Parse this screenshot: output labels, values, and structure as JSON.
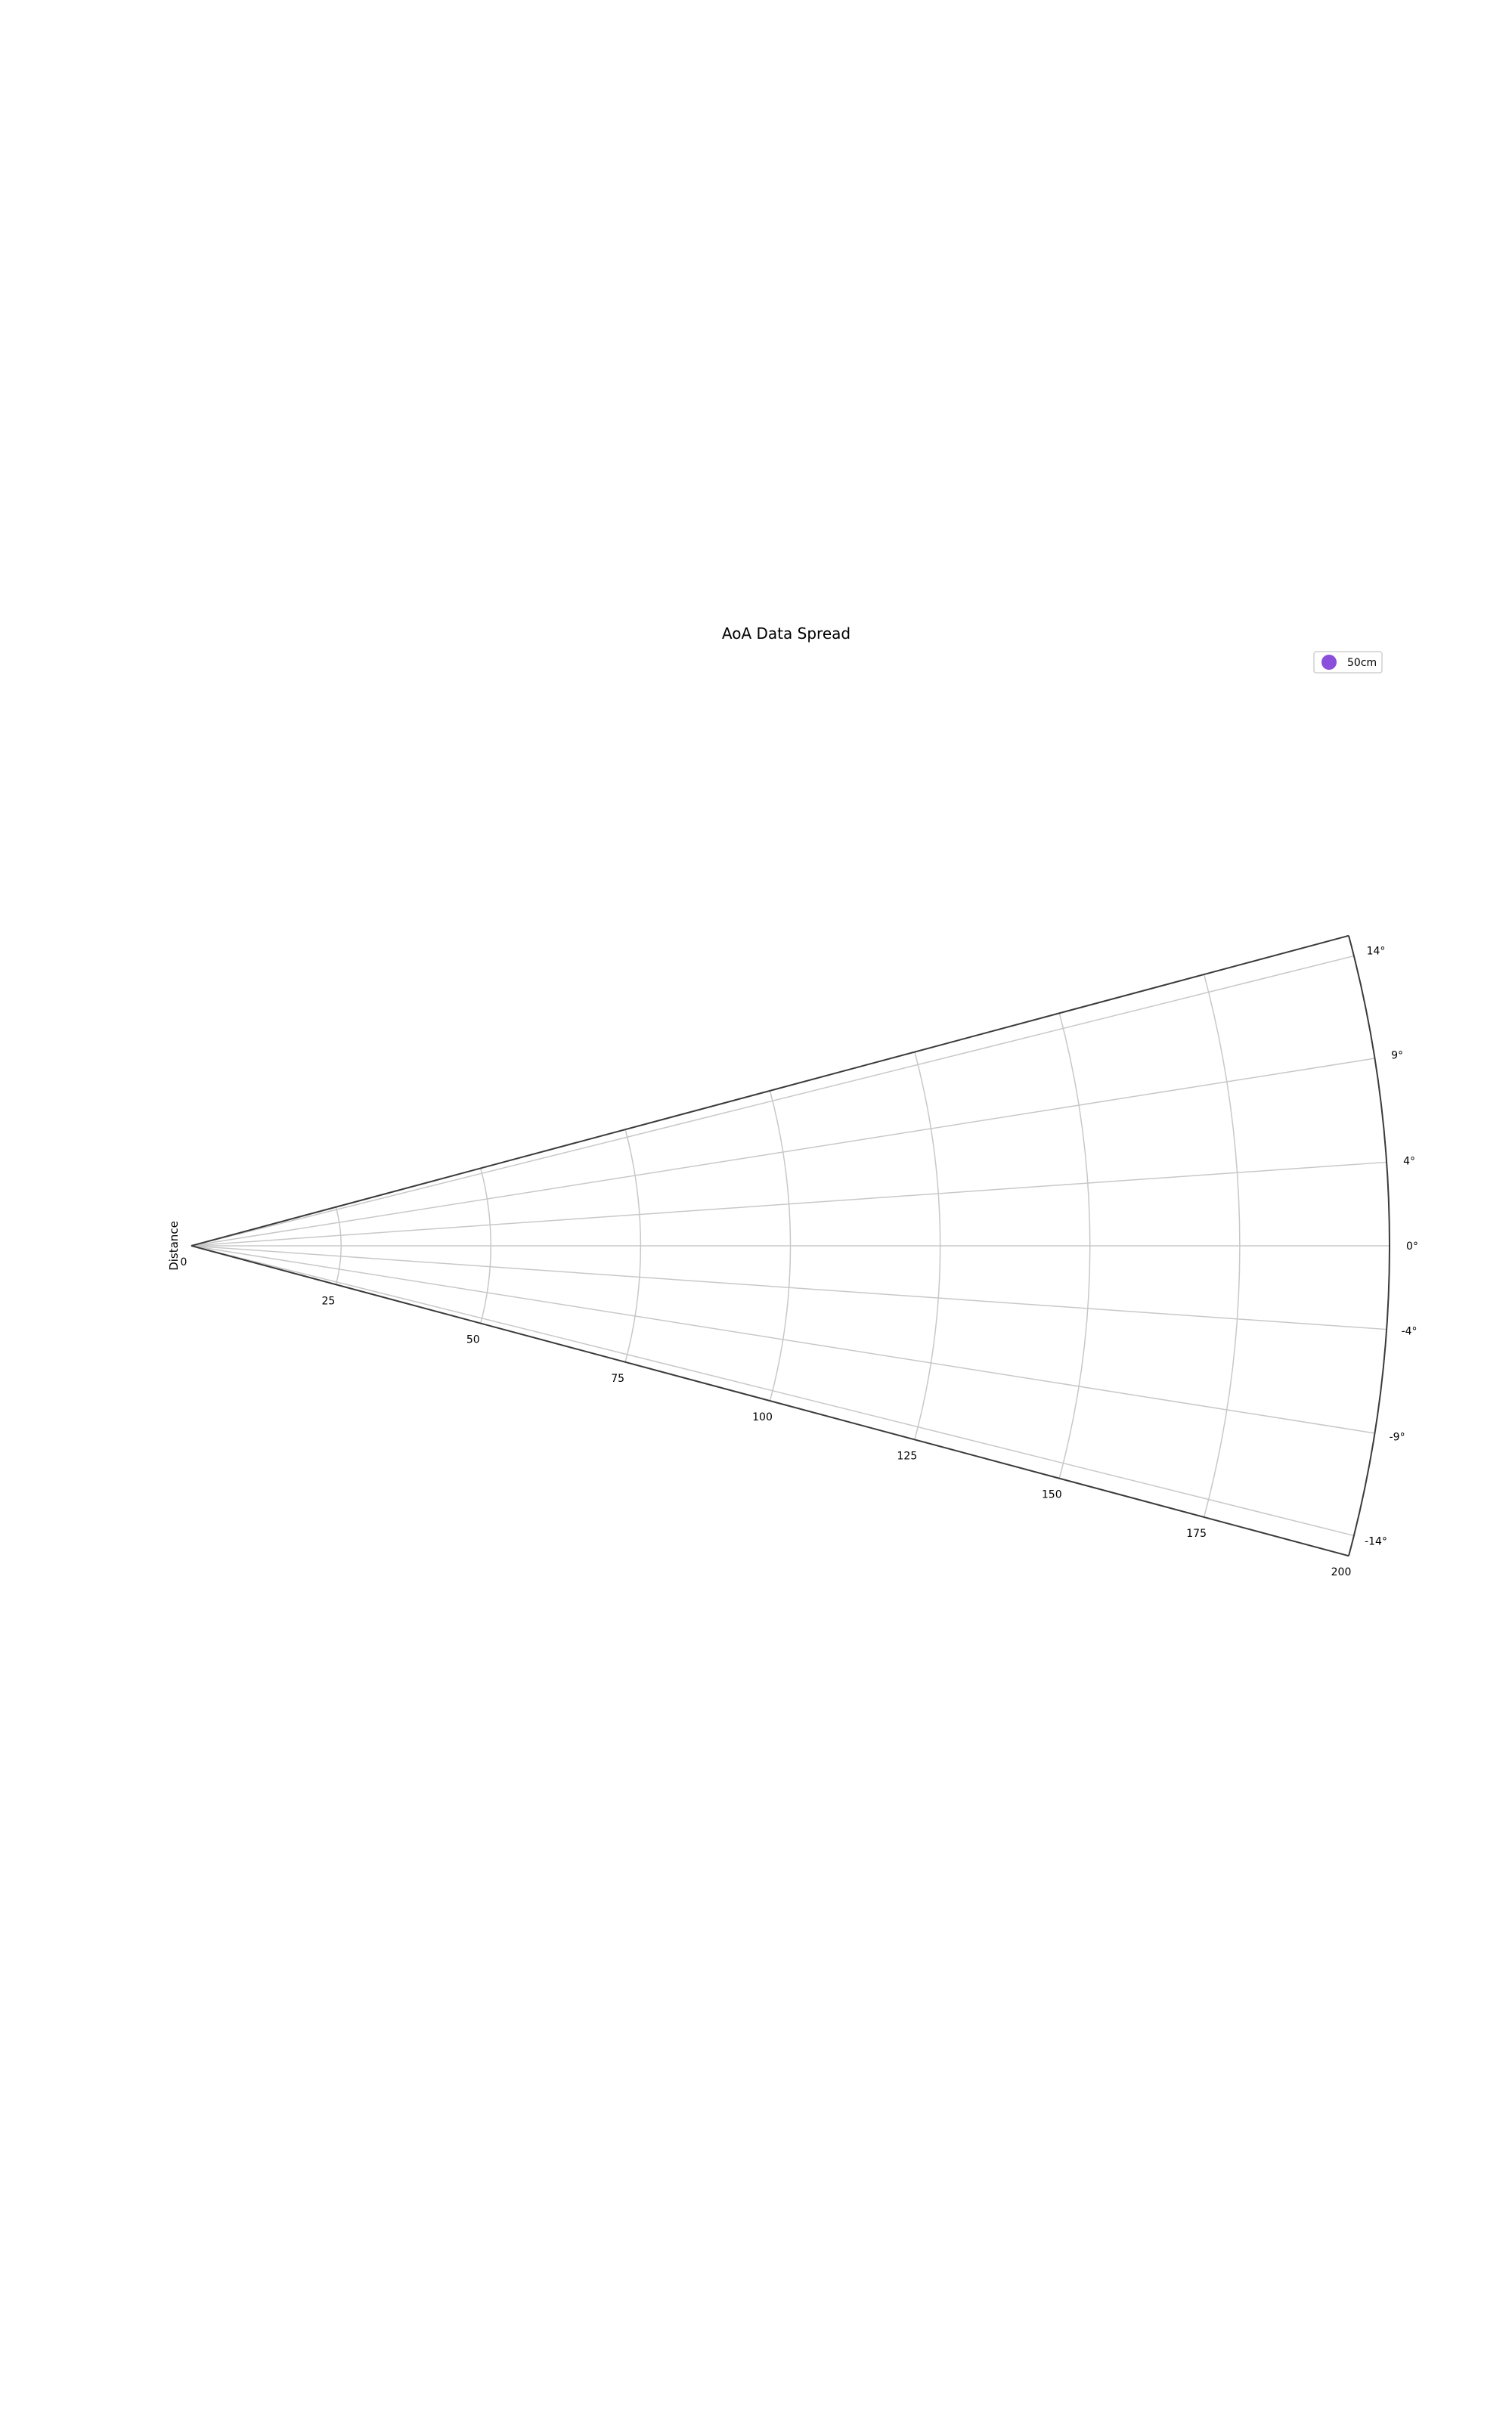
{
  "chart_data": {
    "type": "scatter",
    "projection": "polar-sector",
    "title": "AoA Data Spread",
    "radial_label": "Distance",
    "radial_range": [
      0,
      200
    ],
    "radial_ticks": [
      0,
      25,
      50,
      75,
      100,
      125,
      150,
      175,
      200
    ],
    "radial_tick_labels": [
      "0",
      "25",
      "50",
      "75",
      "100",
      "125",
      "150",
      "175",
      "200"
    ],
    "angle_range_deg": [
      -15,
      15
    ],
    "angle_ticks_deg": [
      14,
      9,
      4,
      0,
      -4,
      -9,
      -14
    ],
    "angle_tick_labels": [
      "14°",
      "9°",
      "4°",
      "0°",
      "-4°",
      "-9°",
      "-14°"
    ],
    "grid": true,
    "legend_position": "top-right",
    "series": [
      {
        "name": "50cm",
        "color": "#8a4fdb",
        "points": []
      }
    ]
  }
}
